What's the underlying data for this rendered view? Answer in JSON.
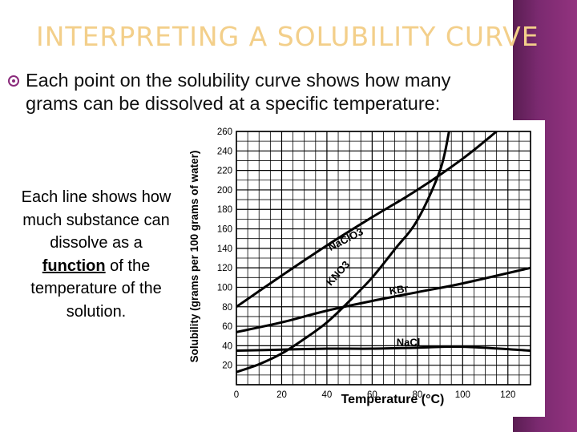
{
  "slide": {
    "title": "Interpreting a Solubility Curve",
    "bullet": "Each point on the solubility curve shows how many grams can be dissolved at a specific temperature:",
    "side_text_before": "Each line shows how much substance can dissolve as a ",
    "side_text_bold": "function",
    "side_text_after": " of the temperature of the solution.",
    "accent_color": "#f3cf8a",
    "band_color": "#7b2a70"
  },
  "chart_data": {
    "type": "line",
    "xlabel": "Temperature (°C)",
    "ylabel": "Solubility (grams per 100 grams of water)",
    "xlim": [
      0,
      130
    ],
    "ylim": [
      0,
      260
    ],
    "xticks": [
      0,
      20,
      40,
      60,
      80,
      100,
      120
    ],
    "yticks": [
      20,
      40,
      60,
      80,
      100,
      120,
      140,
      160,
      180,
      200,
      220,
      240,
      260
    ],
    "grid": true,
    "series": [
      {
        "name": "NaClO3",
        "label_x": 49,
        "label_y": 146,
        "label_rot": -27,
        "x": [
          0,
          20,
          40,
          60,
          80,
          100,
          115
        ],
        "y": [
          80,
          112,
          143,
          172,
          200,
          232,
          260
        ]
      },
      {
        "name": "KNO3",
        "label_x": 46,
        "label_y": 112,
        "label_rot": -48,
        "x": [
          0,
          10,
          20,
          30,
          40,
          50,
          60,
          70,
          80,
          90,
          94
        ],
        "y": [
          13,
          21,
          32,
          47,
          64,
          86,
          110,
          139,
          169,
          220,
          260
        ]
      },
      {
        "name": "KBr",
        "label_x": 72,
        "label_y": 94,
        "label_rot": -9,
        "x": [
          0,
          20,
          40,
          60,
          80,
          100,
          130
        ],
        "y": [
          54,
          64,
          76,
          86,
          95,
          104,
          120
        ]
      },
      {
        "name": "NaCl",
        "label_x": 76,
        "label_y": 40,
        "label_rot": 0,
        "x": [
          0,
          20,
          40,
          60,
          80,
          100,
          130
        ],
        "y": [
          35,
          36,
          37,
          37,
          38,
          39,
          35
        ]
      }
    ]
  }
}
